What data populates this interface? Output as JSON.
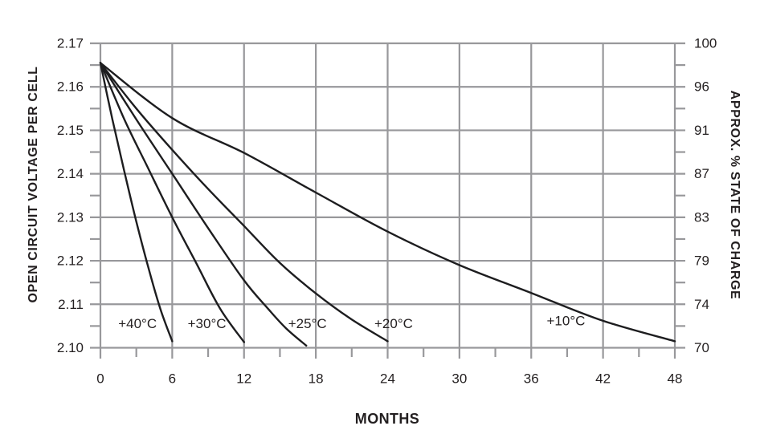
{
  "chart_data": {
    "type": "line",
    "title": "",
    "xlabel": "MONTHS",
    "ylabel_left": "OPEN CIRCUIT VOLTAGE PER CELL",
    "ylabel_right": "APPROX. % STATE OF CHARGE",
    "xlim": [
      0,
      48
    ],
    "ylim_left": [
      2.1,
      2.17
    ],
    "grid": "major-both-axes",
    "legend_position": "inline-curve-labels",
    "x_major_ticks": [
      0,
      6,
      12,
      18,
      24,
      30,
      36,
      42,
      48
    ],
    "x_minor_tick_step": 3,
    "left_tick_labels": [
      "2.17",
      "2.16",
      "2.15",
      "2.14",
      "2.13",
      "2.12",
      "2.11",
      "2.10"
    ],
    "left_tick_values": [
      2.17,
      2.16,
      2.15,
      2.14,
      2.13,
      2.12,
      2.11,
      2.1
    ],
    "right_tick_labels": [
      "100",
      "96",
      "91",
      "87",
      "83",
      "79",
      "74",
      "70"
    ],
    "y_minor_ticks": [
      2.165,
      2.155,
      2.145,
      2.135,
      2.125,
      2.115,
      2.105
    ],
    "series": [
      {
        "name": "+40°C",
        "label_x": 3.1,
        "label_y": 2.1055,
        "points": [
          [
            0,
            2.1655
          ],
          [
            1,
            2.1525
          ],
          [
            2,
            2.1405
          ],
          [
            3,
            2.129
          ],
          [
            4,
            2.1185
          ],
          [
            5,
            2.109
          ],
          [
            6,
            2.1015
          ]
        ]
      },
      {
        "name": "+30°C",
        "label_x": 8.9,
        "label_y": 2.1055,
        "points": [
          [
            0,
            2.1655
          ],
          [
            2,
            2.1525
          ],
          [
            4,
            2.1412
          ],
          [
            6,
            2.13
          ],
          [
            8,
            2.1195
          ],
          [
            10,
            2.109
          ],
          [
            12,
            2.1013
          ]
        ]
      },
      {
        "name": "+25°C",
        "label_x": 17.3,
        "label_y": 2.1055,
        "points": [
          [
            0,
            2.1655
          ],
          [
            3,
            2.1525
          ],
          [
            6,
            2.14
          ],
          [
            9,
            2.1275
          ],
          [
            12,
            2.1155
          ],
          [
            14,
            2.109
          ],
          [
            15.5,
            2.1045
          ],
          [
            17.2,
            2.1005
          ]
        ]
      },
      {
        "name": "+20°C",
        "label_x": 24.5,
        "label_y": 2.1055,
        "points": [
          [
            0,
            2.1655
          ],
          [
            3,
            2.155
          ],
          [
            6,
            2.1455
          ],
          [
            9,
            2.1365
          ],
          [
            12,
            2.128
          ],
          [
            15,
            2.1195
          ],
          [
            18,
            2.1125
          ],
          [
            21,
            2.1065
          ],
          [
            24,
            2.1015
          ]
        ]
      },
      {
        "name": "+10°C",
        "label_x": 38.9,
        "label_y": 2.1062,
        "points": [
          [
            0,
            2.1655
          ],
          [
            6,
            2.1528
          ],
          [
            12,
            2.1448
          ],
          [
            18,
            2.1357
          ],
          [
            24,
            2.1267
          ],
          [
            30,
            2.119
          ],
          [
            36,
            2.1126
          ],
          [
            42,
            2.1062
          ],
          [
            48,
            2.1015
          ]
        ]
      }
    ],
    "colors": {
      "grid": "#98989b",
      "curve": "#1d1d1f",
      "text": "#231f20",
      "background": "#ffffff"
    }
  }
}
